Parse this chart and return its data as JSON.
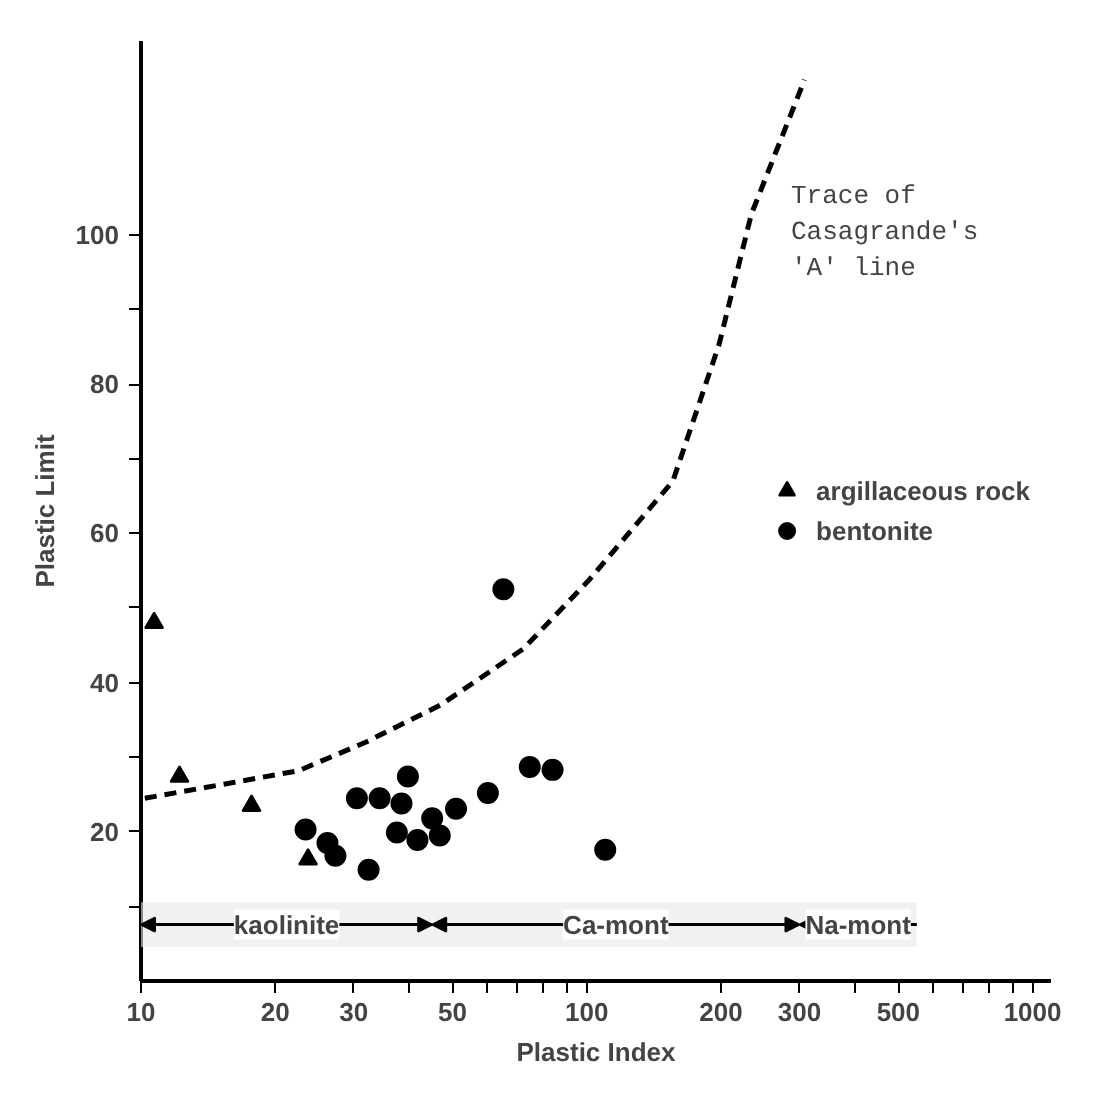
{
  "chart_data": {
    "type": "scatter",
    "xlabel": "Plastic Index",
    "ylabel": "Plastic Limit",
    "log": "x",
    "xlim": [
      10,
      1100
    ],
    "ylim": [
      0,
      126
    ],
    "xticks": [
      10,
      20,
      30,
      {
        "value": 40,
        "label": null
      },
      50,
      {
        "value": 60,
        "label": null
      },
      {
        "value": 70,
        "label": null
      },
      {
        "value": 80,
        "label": null
      },
      {
        "value": 90,
        "label": null
      },
      100,
      200,
      300,
      {
        "value": 400,
        "label": null
      },
      500,
      {
        "value": 600,
        "label": null
      },
      {
        "value": 700,
        "label": null
      },
      {
        "value": 800,
        "label": null
      },
      {
        "value": 900,
        "label": null
      },
      1000
    ],
    "yticks": [
      {
        "value": 10,
        "label": null
      },
      20,
      {
        "value": 30,
        "label": null
      },
      40,
      {
        "value": 50,
        "label": null
      },
      60,
      {
        "value": 70,
        "label": null
      },
      80,
      {
        "value": 90,
        "label": null
      },
      100
    ],
    "grid": false,
    "legend": "right",
    "series": [
      {
        "name": "argillaceous rock",
        "color": "#000000",
        "marker": "triangle",
        "x": [
          10.7,
          12.2,
          17.7,
          23.7
        ],
        "values": [
          48,
          27.4,
          23.5,
          16.3
        ]
      },
      {
        "name": "bentonite",
        "color": "#000000",
        "marker": "circle",
        "x": [
          23.4,
          26.2,
          27.3,
          32.4,
          30.5,
          34.3,
          38.4,
          39.7,
          37.5,
          41.7,
          45,
          46.8,
          50.9,
          60,
          74.5,
          83.8,
          110,
          65
        ],
        "values": [
          20.3,
          18.5,
          16.8,
          14.9,
          24.5,
          24.5,
          23.8,
          27.4,
          19.9,
          18.9,
          21.8,
          19.5,
          23.1,
          25.2,
          28.7,
          28.3,
          17.6,
          52.5
        ]
      },
      {
        "type": "line",
        "line_style": "dashed",
        "color": "#000000",
        "x": [
          10.2,
          16.1,
          22.6,
          31.9,
          47,
          72,
          101,
          156,
          198,
          234,
          308
        ],
        "values": [
          24.5,
          26.6,
          28.2,
          32,
          37,
          44.5,
          53.7,
          67,
          85.3,
          102.8,
          120.8
        ]
      }
    ],
    "annotations": [
      "Trace of Casagrande's 'A' line"
    ],
    "bands": [
      {
        "axis": "x",
        "from": 10,
        "to": 45,
        "label": "kaolinite"
      },
      {
        "axis": "x",
        "from": 45,
        "to": 300,
        "label": "Ca-mont"
      },
      {
        "axis": "x",
        "from": 300,
        "to": 550,
        "label": "Na-mont"
      }
    ]
  }
}
